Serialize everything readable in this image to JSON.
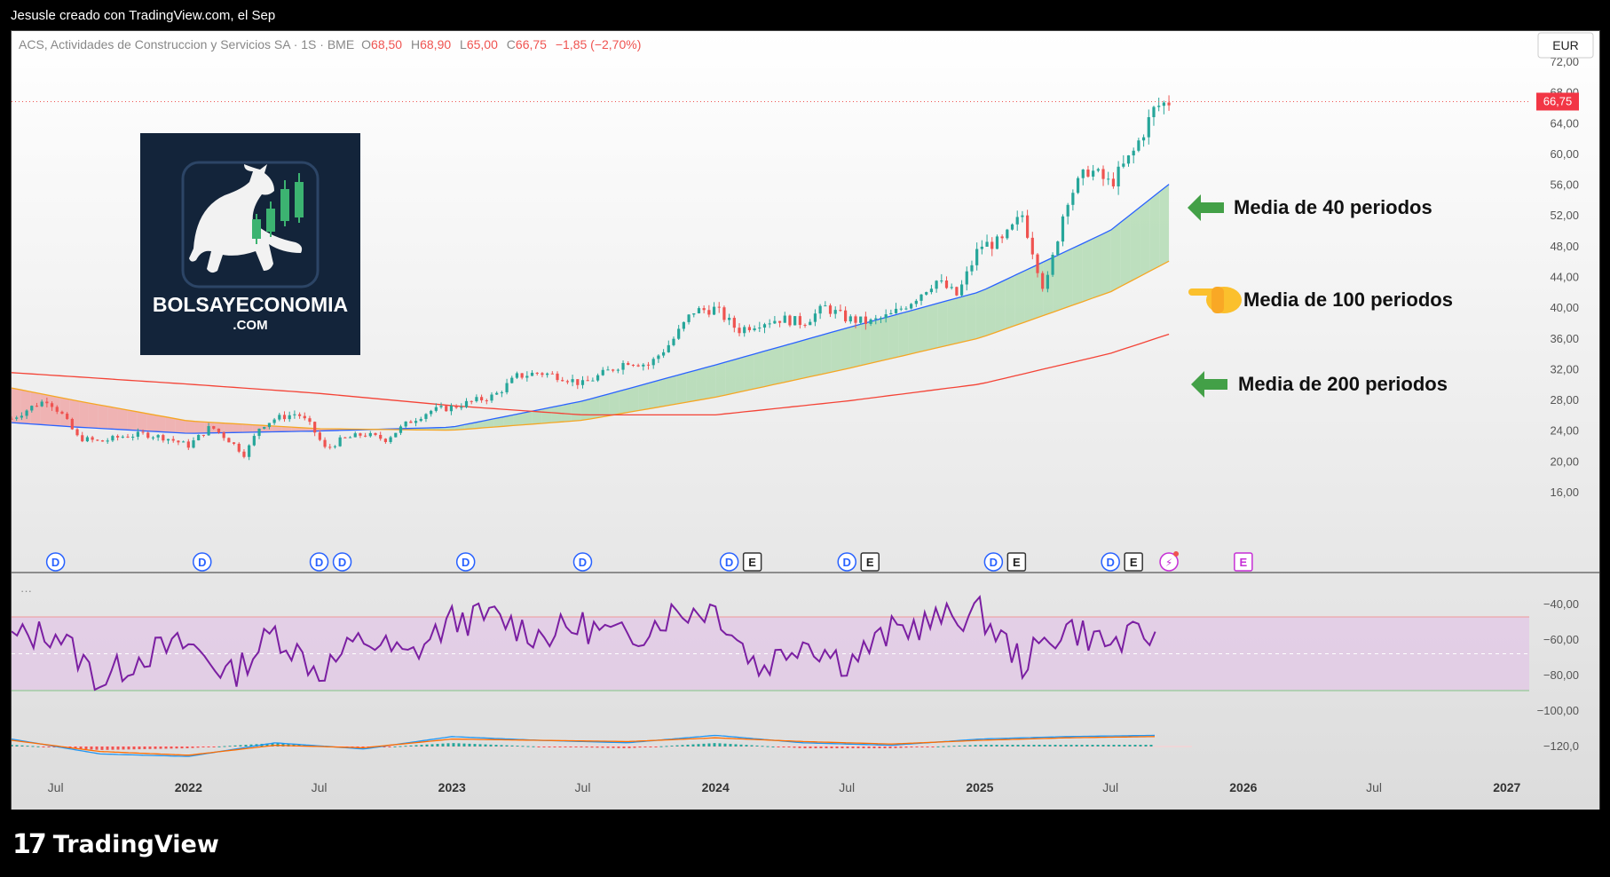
{
  "header": {
    "author_line": "Jesusle creado con TradingView.com, el Sep"
  },
  "symbol_bar": {
    "name": "ACS, Actividades de Construccion y Servicios SA · 1S · BME",
    "open_label": "O",
    "open": "68,50",
    "high_label": "H",
    "high": "68,90",
    "low_label": "L",
    "low": "65,00",
    "close_label": "C",
    "close": "66,75",
    "change": "−1,85 (−2,70%)",
    "currency": "EUR"
  },
  "logo": {
    "line1": "BOLSAYECONOMIA",
    "line2": ".COM"
  },
  "annotations": [
    {
      "text": "Media de 40 periodos",
      "icon": "green-arrow-left-icon"
    },
    {
      "text": "Media de 100 periodos",
      "icon": "pointing-hand-icon"
    },
    {
      "text": "Media de 200 periodos",
      "icon": "green-arrow-left-icon"
    }
  ],
  "indicator_panel": {
    "collapsed_label": "···"
  },
  "colors": {
    "up": "#26a69a",
    "down": "#ef5350",
    "ma40": "#2962ff",
    "ma100": "#f5a623",
    "ma200": "#f44336",
    "fill_green": "#a5d6a7",
    "fill_red": "#ef9a9a",
    "rsi": "#7b1fa2",
    "macd_line": "#2196f3",
    "signal_line": "#ff6d00",
    "arrow_green": "#43a047",
    "logo_bg": "#13243a"
  },
  "footer": {
    "brand": "TradingView"
  },
  "chart_data": [
    {
      "type": "candlestick",
      "interval": "1W",
      "y_axis": {
        "min": 16,
        "max": 72,
        "ticks": [
          "72,00",
          "68,00",
          "64,00",
          "60,00",
          "56,00",
          "52,00",
          "48,00",
          "44,00",
          "40,00",
          "36,00",
          "32,00",
          "28,00",
          "24,00",
          "20,00",
          "16,00"
        ],
        "current_price_label": "66,75"
      },
      "x_axis": {
        "range": [
          "2021-05-01",
          "2027-02-01"
        ],
        "ticks": [
          {
            "label": "Jul",
            "date": "2021-07-01"
          },
          {
            "label": "2022",
            "date": "2022-01-01"
          },
          {
            "label": "Jul",
            "date": "2022-07-01"
          },
          {
            "label": "2023",
            "date": "2023-01-01"
          },
          {
            "label": "Jul",
            "date": "2023-07-01"
          },
          {
            "label": "2024",
            "date": "2024-01-01"
          },
          {
            "label": "Jul",
            "date": "2024-07-01"
          },
          {
            "label": "2025",
            "date": "2025-01-01"
          },
          {
            "label": "Jul",
            "date": "2025-07-01"
          },
          {
            "label": "2026",
            "date": "2026-01-01"
          },
          {
            "label": "Jul",
            "date": "2026-07-01"
          },
          {
            "label": "2027",
            "date": "2027-01-01"
          }
        ]
      },
      "price_path": [
        [
          "2021-05-01",
          25.5
        ],
        [
          "2021-06-01",
          27.2
        ],
        [
          "2021-06-20",
          28.0
        ],
        [
          "2021-07-10",
          26.0
        ],
        [
          "2021-08-01",
          23.0
        ],
        [
          "2021-09-01",
          22.5
        ],
        [
          "2021-10-01",
          23.2
        ],
        [
          "2021-11-01",
          23.5
        ],
        [
          "2021-12-01",
          23.0
        ],
        [
          "2022-01-01",
          22.0
        ],
        [
          "2022-02-01",
          24.5
        ],
        [
          "2022-03-01",
          22.5
        ],
        [
          "2022-03-20",
          20.8
        ],
        [
          "2022-04-10",
          24.5
        ],
        [
          "2022-05-01",
          25.5
        ],
        [
          "2022-06-01",
          26.2
        ],
        [
          "2022-06-20",
          24.5
        ],
        [
          "2022-07-10",
          21.5
        ],
        [
          "2022-08-01",
          22.8
        ],
        [
          "2022-09-01",
          23.5
        ],
        [
          "2022-10-01",
          22.8
        ],
        [
          "2022-11-01",
          25.0
        ],
        [
          "2022-12-01",
          26.5
        ],
        [
          "2023-01-01",
          27.0
        ],
        [
          "2023-02-01",
          27.8
        ],
        [
          "2023-03-01",
          28.5
        ],
        [
          "2023-04-01",
          31.0
        ],
        [
          "2023-05-01",
          31.5
        ],
        [
          "2023-06-01",
          31.0
        ],
        [
          "2023-07-01",
          30.0
        ],
        [
          "2023-08-01",
          31.5
        ],
        [
          "2023-09-01",
          33.0
        ],
        [
          "2023-10-01",
          32.5
        ],
        [
          "2023-11-01",
          35.5
        ],
        [
          "2023-12-01",
          39.5
        ],
        [
          "2024-01-01",
          39.8
        ],
        [
          "2024-02-01",
          37.0
        ],
        [
          "2024-03-01",
          38.0
        ],
        [
          "2024-04-01",
          38.5
        ],
        [
          "2024-05-01",
          38.0
        ],
        [
          "2024-06-01",
          40.0
        ],
        [
          "2024-07-01",
          38.5
        ],
        [
          "2024-08-01",
          38.0
        ],
        [
          "2024-09-01",
          39.0
        ],
        [
          "2024-10-01",
          41.0
        ],
        [
          "2024-11-01",
          43.5
        ],
        [
          "2024-12-01",
          41.5
        ],
        [
          "2025-01-01",
          48.0
        ],
        [
          "2025-02-01",
          48.5
        ],
        [
          "2025-03-01",
          52.0
        ],
        [
          "2025-04-01",
          42.0
        ],
        [
          "2025-05-01",
          54.0
        ],
        [
          "2025-06-01",
          58.0
        ],
        [
          "2025-07-01",
          56.0
        ],
        [
          "2025-08-01",
          60.0
        ],
        [
          "2025-09-01",
          66.0
        ],
        [
          "2025-09-20",
          66.75
        ]
      ],
      "moving_averages": [
        {
          "name": "Media de 40 periodos",
          "points": [
            [
              "2021-05-01",
              25.0
            ],
            [
              "2021-08-01",
              24.4
            ],
            [
              "2022-01-01",
              23.6
            ],
            [
              "2022-07-01",
              23.9
            ],
            [
              "2023-01-01",
              24.4
            ],
            [
              "2023-07-01",
              27.8
            ],
            [
              "2024-01-01",
              32.5
            ],
            [
              "2024-07-01",
              37.3
            ],
            [
              "2025-01-01",
              42.0
            ],
            [
              "2025-07-01",
              50.0
            ],
            [
              "2025-09-20",
              56.0
            ]
          ]
        },
        {
          "name": "Media de 100 periodos",
          "points": [
            [
              "2021-05-01",
              29.5
            ],
            [
              "2021-08-01",
              27.8
            ],
            [
              "2022-01-01",
              25.2
            ],
            [
              "2022-07-01",
              24.2
            ],
            [
              "2023-01-01",
              24.0
            ],
            [
              "2023-07-01",
              25.3
            ],
            [
              "2024-01-01",
              28.3
            ],
            [
              "2024-07-01",
              32.0
            ],
            [
              "2025-01-01",
              36.0
            ],
            [
              "2025-07-01",
              42.0
            ],
            [
              "2025-09-20",
              46.0
            ]
          ]
        },
        {
          "name": "Media de 200 periodos",
          "points": [
            [
              "2021-05-01",
              31.5
            ],
            [
              "2022-01-01",
              30.0
            ],
            [
              "2022-07-01",
              28.8
            ],
            [
              "2023-01-01",
              27.2
            ],
            [
              "2023-07-01",
              26.0
            ],
            [
              "2024-01-01",
              26.0
            ],
            [
              "2024-07-01",
              27.8
            ],
            [
              "2025-01-01",
              30.0
            ],
            [
              "2025-07-01",
              34.0
            ],
            [
              "2025-09-20",
              36.5
            ]
          ]
        }
      ],
      "event_markers": [
        {
          "date": "2021-07-01",
          "labels": [
            "D"
          ]
        },
        {
          "date": "2022-01-20",
          "labels": [
            "D"
          ]
        },
        {
          "date": "2022-07-01",
          "labels": [
            "D",
            "D"
          ]
        },
        {
          "date": "2023-01-20",
          "labels": [
            "D"
          ]
        },
        {
          "date": "2023-07-01",
          "labels": [
            "D"
          ]
        },
        {
          "date": "2024-01-20",
          "labels": [
            "D",
            "E"
          ]
        },
        {
          "date": "2024-07-01",
          "labels": [
            "D",
            "E"
          ]
        },
        {
          "date": "2025-01-20",
          "labels": [
            "D",
            "E"
          ]
        },
        {
          "date": "2025-07-01",
          "labels": [
            "D",
            "E"
          ]
        },
        {
          "date": "2025-09-20",
          "labels": [
            "⚡"
          ]
        },
        {
          "date": "2026-01-01",
          "labels": [
            "E"
          ]
        }
      ]
    },
    {
      "type": "line",
      "name": "RSI",
      "y_axis": {
        "ticks": [
          "−40,00",
          "−60,00",
          "−80,00",
          "−100,00",
          "−120,0"
        ]
      },
      "band": {
        "upper": 70,
        "lower": 30
      },
      "x": [
        "2021-05",
        "2021-07",
        "2021-09",
        "2021-11",
        "2022-01",
        "2022-03",
        "2022-05",
        "2022-07",
        "2022-09",
        "2022-11",
        "2023-01",
        "2023-03",
        "2023-05",
        "2023-07",
        "2023-09",
        "2023-11",
        "2024-01",
        "2024-03",
        "2024-05",
        "2024-07",
        "2024-09",
        "2024-11",
        "2025-01",
        "2025-03",
        "2025-05",
        "2025-07",
        "2025-09"
      ],
      "values": [
        58,
        62,
        35,
        50,
        55,
        38,
        62,
        40,
        58,
        48,
        68,
        70,
        60,
        65,
        58,
        72,
        75,
        42,
        58,
        45,
        62,
        68,
        72,
        45,
        65,
        55,
        62
      ]
    },
    {
      "type": "line",
      "name": "MACD",
      "x": [
        "2021-05",
        "2021-09",
        "2022-01",
        "2022-05",
        "2022-09",
        "2023-01",
        "2023-05",
        "2023-09",
        "2024-01",
        "2024-05",
        "2024-09",
        "2025-01",
        "2025-05",
        "2025-09"
      ],
      "series": [
        {
          "values": [
            0.6,
            -0.6,
            -0.8,
            0.3,
            -0.2,
            0.8,
            0.5,
            0.3,
            0.9,
            0.3,
            0.1,
            0.6,
            0.8,
            0.9
          ]
        },
        {
          "values": [
            0.5,
            -0.4,
            -0.7,
            0.1,
            -0.1,
            0.6,
            0.5,
            0.4,
            0.7,
            0.4,
            0.2,
            0.5,
            0.7,
            0.8
          ]
        }
      ]
    }
  ]
}
